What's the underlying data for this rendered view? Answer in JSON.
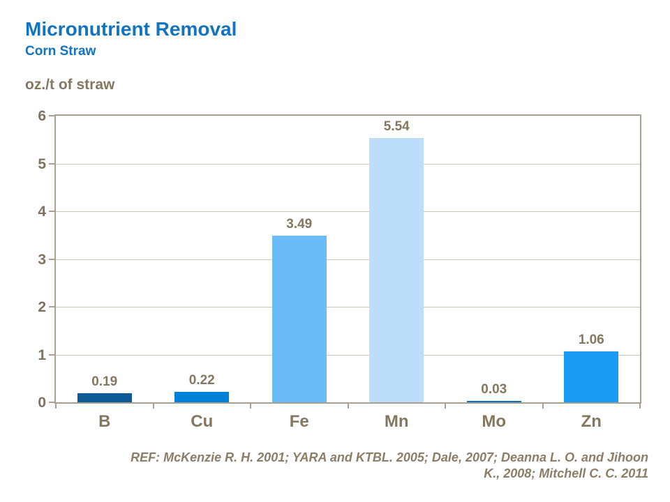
{
  "header": {
    "title": "Micronutrient Removal",
    "subtitle": "Corn Straw"
  },
  "axis_title": "oz./t of straw",
  "footer": {
    "ref_line1": "REF: McKenzie R. H. 2001; YARA and KTBL. 2005; Dale, 2007; Deanna L. O. and Jihoon",
    "ref_line2": "K.,  2008; Mitchell C. C. 2011"
  },
  "colors": {
    "title_blue": "#1173C2",
    "text_brown": "#847760",
    "axis_line": "#A9A08F",
    "gridline": "#CCC5B8",
    "background": "#FFFFFF"
  },
  "chart_data": {
    "type": "bar",
    "title": "Micronutrient Removal",
    "subtitle": "Corn Straw",
    "xlabel": "",
    "ylabel": "oz./t of straw",
    "categories": [
      "B",
      "Cu",
      "Fe",
      "Mn",
      "Mo",
      "Zn"
    ],
    "values": [
      0.19,
      0.22,
      3.49,
      5.54,
      0.03,
      1.06
    ],
    "value_labels": [
      "0.19",
      "0.22",
      "3.49",
      "5.54",
      "0.03",
      "1.06"
    ],
    "bar_colors": [
      "#0E5A96",
      "#0081D8",
      "#6ABCF8",
      "#BDDEFB",
      "#0A6FC4",
      "#1C9BF3"
    ],
    "ylim": [
      0,
      6
    ],
    "ytick_step": 1,
    "grid": true,
    "legend_position": "none"
  }
}
